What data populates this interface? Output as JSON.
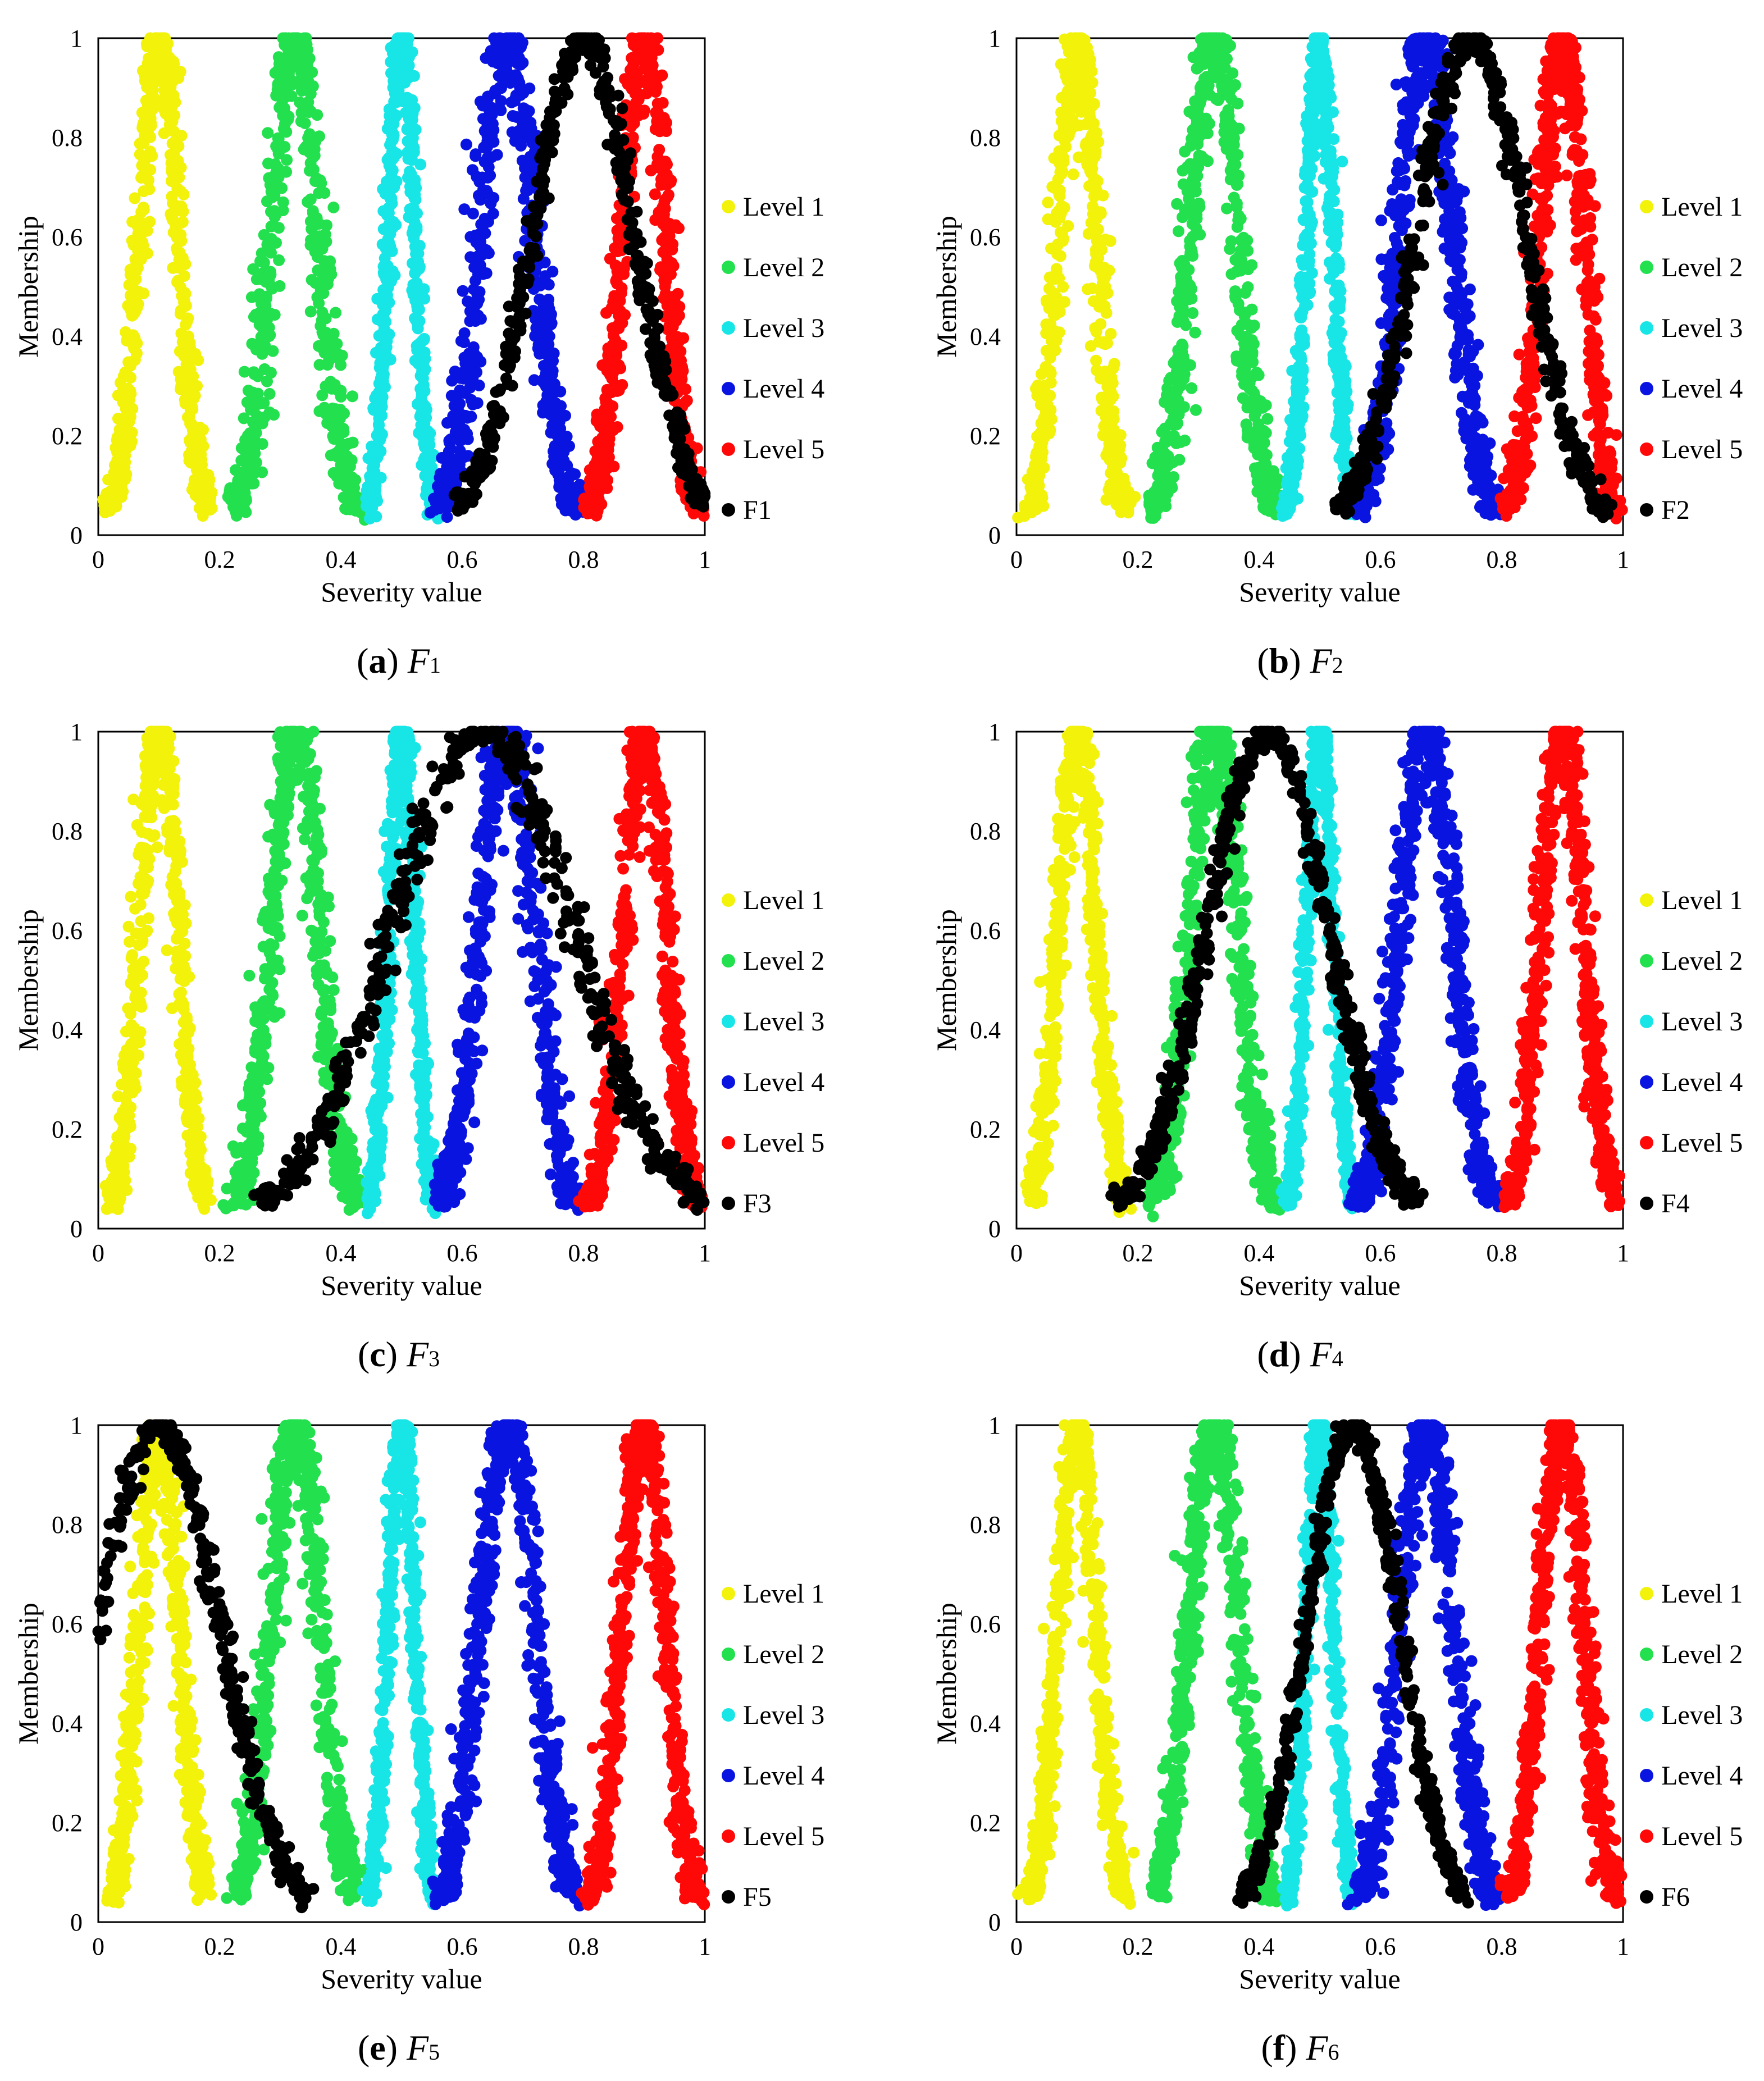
{
  "figure": {
    "panels": [
      {
        "letter": "a",
        "caption_open": "(",
        "caption_close": ")",
        "caption_symbol": "F",
        "caption_sub": "1"
      },
      {
        "letter": "b",
        "caption_open": "(",
        "caption_close": ")",
        "caption_symbol": "F",
        "caption_sub": "2"
      },
      {
        "letter": "c",
        "caption_open": "(",
        "caption_close": ")",
        "caption_symbol": "F",
        "caption_sub": "3"
      },
      {
        "letter": "d",
        "caption_open": "(",
        "caption_close": ")",
        "caption_symbol": "F",
        "caption_sub": "4"
      },
      {
        "letter": "e",
        "caption_open": "(",
        "caption_close": ")",
        "caption_symbol": "F",
        "caption_sub": "5"
      },
      {
        "letter": "f",
        "caption_open": "(",
        "caption_close": ")",
        "caption_symbol": "F",
        "caption_sub": "6"
      }
    ]
  },
  "colors": {
    "Level 1": "#f2f20a",
    "Level 2": "#22e04e",
    "Level 3": "#18e6e6",
    "Level 4": "#0a14e0",
    "Level 5": "#ff0808",
    "factor": "#000000"
  },
  "chart_data": [
    {
      "type": "scatter",
      "title": "",
      "xlabel": "Severity value",
      "ylabel": "Membership",
      "xlim": [
        0,
        1
      ],
      "ylim": [
        0,
        1
      ],
      "xticks": [
        "0",
        "0.2",
        "0.4",
        "0.6",
        "0.8",
        "1"
      ],
      "yticks": [
        "0",
        "0.2",
        "0.4",
        "0.6",
        "0.8",
        "1"
      ],
      "legend_position": "right",
      "series": [
        {
          "name": "Level 1",
          "peak": 0.1,
          "spread": 0.032
        },
        {
          "name": "Level 2",
          "peak": 0.325,
          "spread": 0.04
        },
        {
          "name": "Level 3",
          "peak": 0.5,
          "spread": 0.022
        },
        {
          "name": "Level 4",
          "peak": 0.675,
          "spread": 0.045
        },
        {
          "name": "Level 5",
          "peak": 0.9,
          "spread": 0.036
        },
        {
          "name": "F1",
          "peak": 0.8,
          "spread": 0.085
        }
      ]
    },
    {
      "type": "scatter",
      "title": "",
      "xlabel": "Severity value",
      "ylabel": "Membership",
      "xlim": [
        0,
        1
      ],
      "ylim": [
        0,
        1
      ],
      "xticks": [
        "0",
        "0.2",
        "0.4",
        "0.6",
        "0.8",
        "1"
      ],
      "yticks": [
        "0",
        "0.2",
        "0.4",
        "0.6",
        "0.8",
        "1"
      ],
      "legend_position": "right",
      "series": [
        {
          "name": "Level 1",
          "peak": 0.1,
          "spread": 0.032
        },
        {
          "name": "Level 2",
          "peak": 0.325,
          "spread": 0.04
        },
        {
          "name": "Level 3",
          "peak": 0.5,
          "spread": 0.022
        },
        {
          "name": "Level 4",
          "peak": 0.675,
          "spread": 0.045
        },
        {
          "name": "Level 5",
          "peak": 0.9,
          "spread": 0.036
        },
        {
          "name": "F2",
          "peak": 0.75,
          "spread": 0.09
        }
      ]
    },
    {
      "type": "scatter",
      "title": "",
      "xlabel": "Severity value",
      "ylabel": "Membership",
      "xlim": [
        0,
        1
      ],
      "ylim": [
        0,
        1
      ],
      "xticks": [
        "0",
        "0.2",
        "0.4",
        "0.6",
        "0.8",
        "1"
      ],
      "yticks": [
        "0",
        "0.2",
        "0.4",
        "0.6",
        "0.8",
        "1"
      ],
      "legend_position": "right",
      "series": [
        {
          "name": "Level 1",
          "peak": 0.1,
          "spread": 0.032
        },
        {
          "name": "Level 2",
          "peak": 0.325,
          "spread": 0.04
        },
        {
          "name": "Level 3",
          "peak": 0.5,
          "spread": 0.022
        },
        {
          "name": "Level 4",
          "peak": 0.675,
          "spread": 0.045
        },
        {
          "name": "Level 5",
          "peak": 0.9,
          "spread": 0.036
        },
        {
          "name": "F3",
          "peak": 0.635,
          "spread": 0.15
        }
      ]
    },
    {
      "type": "scatter",
      "title": "",
      "xlabel": "Severity value",
      "ylabel": "Membership",
      "xlim": [
        0,
        1
      ],
      "ylim": [
        0,
        1
      ],
      "xticks": [
        "0",
        "0.2",
        "0.4",
        "0.6",
        "0.8",
        "1"
      ],
      "yticks": [
        "0",
        "0.2",
        "0.4",
        "0.6",
        "0.8",
        "1"
      ],
      "legend_position": "right",
      "series": [
        {
          "name": "Level 1",
          "peak": 0.1,
          "spread": 0.032
        },
        {
          "name": "Level 2",
          "peak": 0.325,
          "spread": 0.04
        },
        {
          "name": "Level 3",
          "peak": 0.5,
          "spread": 0.022
        },
        {
          "name": "Level 4",
          "peak": 0.675,
          "spread": 0.045
        },
        {
          "name": "Level 5",
          "peak": 0.9,
          "spread": 0.036
        },
        {
          "name": "F4",
          "peak": 0.415,
          "spread": 0.1
        }
      ]
    },
    {
      "type": "scatter",
      "title": "",
      "xlabel": "Severity value",
      "ylabel": "Membership",
      "xlim": [
        0,
        1
      ],
      "ylim": [
        0,
        1
      ],
      "xticks": [
        "0",
        "0.2",
        "0.4",
        "0.6",
        "0.8",
        "1"
      ],
      "yticks": [
        "0",
        "0.2",
        "0.4",
        "0.6",
        "0.8",
        "1"
      ],
      "legend_position": "right",
      "series": [
        {
          "name": "Level 1",
          "peak": 0.1,
          "spread": 0.032
        },
        {
          "name": "Level 2",
          "peak": 0.325,
          "spread": 0.04
        },
        {
          "name": "Level 3",
          "peak": 0.5,
          "spread": 0.022
        },
        {
          "name": "Level 4",
          "peak": 0.675,
          "spread": 0.045
        },
        {
          "name": "Level 5",
          "peak": 0.9,
          "spread": 0.036
        },
        {
          "name": "F5",
          "peak": 0.1,
          "spread": 0.1
        }
      ]
    },
    {
      "type": "scatter",
      "title": "",
      "xlabel": "Severity value",
      "ylabel": "Membership",
      "xlim": [
        0,
        1
      ],
      "ylim": [
        0,
        1
      ],
      "xticks": [
        "0",
        "0.2",
        "0.4",
        "0.6",
        "0.8",
        "1"
      ],
      "yticks": [
        "0",
        "0.2",
        "0.4",
        "0.6",
        "0.8",
        "1"
      ],
      "legend_position": "right",
      "series": [
        {
          "name": "Level 1",
          "peak": 0.1,
          "spread": 0.032
        },
        {
          "name": "Level 2",
          "peak": 0.325,
          "spread": 0.04
        },
        {
          "name": "Level 3",
          "peak": 0.5,
          "spread": 0.022
        },
        {
          "name": "Level 4",
          "peak": 0.675,
          "spread": 0.045
        },
        {
          "name": "Level 5",
          "peak": 0.9,
          "spread": 0.036
        },
        {
          "name": "F6",
          "peak": 0.555,
          "spread": 0.075
        }
      ]
    }
  ]
}
